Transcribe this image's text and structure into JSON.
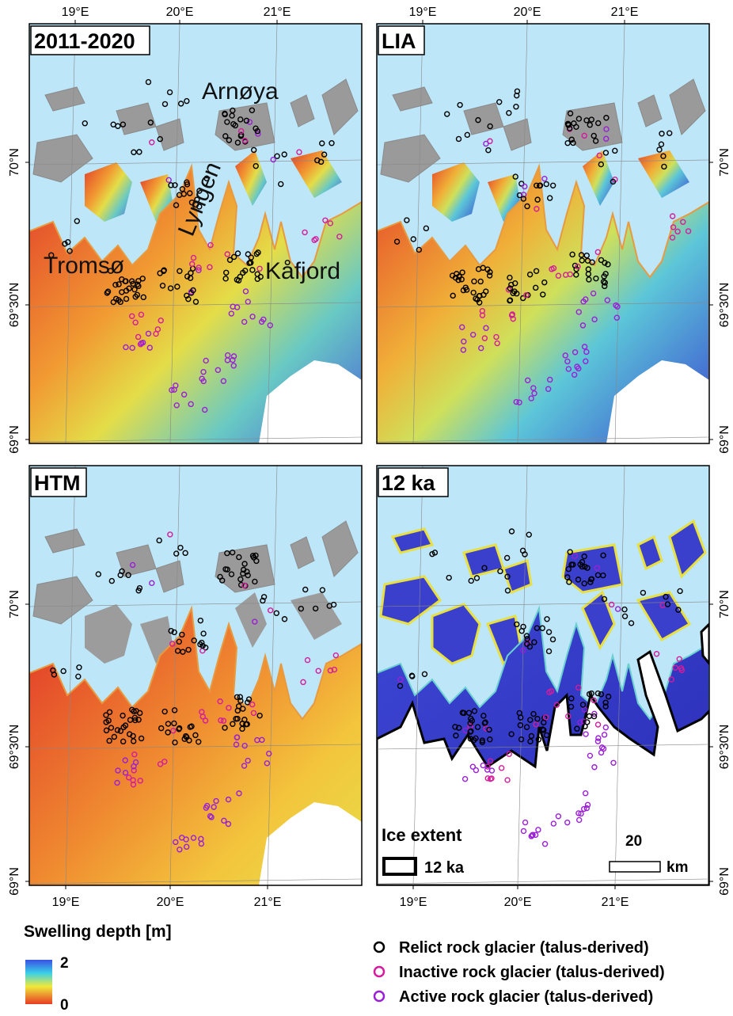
{
  "panels": [
    {
      "title": "2011-2020",
      "place_labels": [
        "Arnøya",
        "Lyngen",
        "Tromsø",
        "Kåfjord"
      ]
    },
    {
      "title": "LIA"
    },
    {
      "title": "HTM"
    },
    {
      "title": "12 ka",
      "ice_legend": {
        "heading": "Ice extent",
        "label": "12 ka"
      },
      "scale_bar": {
        "value": 20,
        "unit": "km"
      }
    }
  ],
  "graticule": {
    "lon_labels": [
      "19°E",
      "20°E",
      "21°E"
    ],
    "lat_labels": [
      "70°N",
      "69°30'N",
      "69°N"
    ]
  },
  "legend": {
    "colorbar": {
      "title": "Swelling depth [m]",
      "max": 2,
      "min": 0
    },
    "symbols": [
      {
        "label": "Relict rock glacier (talus-derived)",
        "color": "#000000"
      },
      {
        "label": "Inactive rock glacier (talus-derived)",
        "color": "#d41c9c"
      },
      {
        "label": "Active rock glacier (talus-derived)",
        "color": "#9a1fd6"
      }
    ]
  }
}
